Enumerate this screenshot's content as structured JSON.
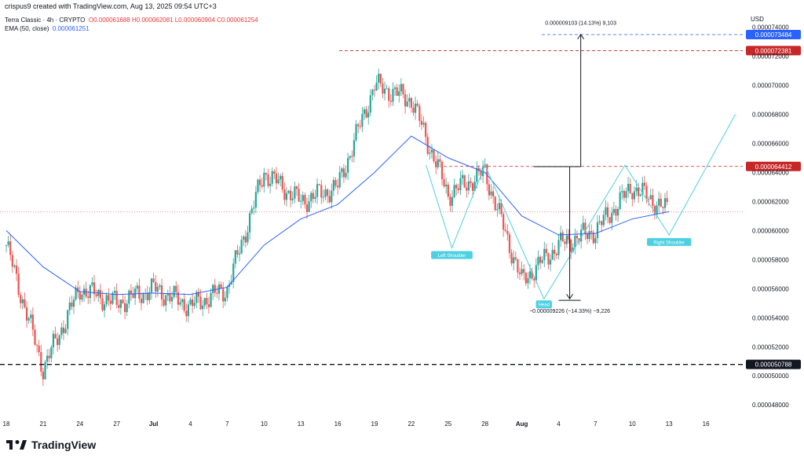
{
  "header": {
    "credit": "crispus9 created with TradingView.com, Aug 13, 2025 09:54 UTC+3",
    "symbol": "Terra Classic · 4h · CRYPTO",
    "ohlc": "O0.000061688 H0.000062081 L0.000060904 C0.000061254",
    "ema_label": "EMA (50, close)",
    "ema_value": "0.000061251",
    "currency": "USD"
  },
  "footer": {
    "brand": "TradingView"
  },
  "colors": {
    "up": "#26a69a",
    "down": "#ef5350",
    "ema": "#2962ff",
    "pattern": "#4dd0e1",
    "red_level": "#c62828",
    "blue_level": "#2962ff"
  },
  "chart_data": {
    "type": "candlestick",
    "timeframe": "4h",
    "ylim": [
      4.72e-05,
      7.5e-05
    ],
    "y_ticks": [
      "0.000048000",
      "0.000050000",
      "0.000052000",
      "0.000054000",
      "0.000056000",
      "0.000058000",
      "0.000060000",
      "0.000062000",
      "0.000064000",
      "0.000066000",
      "0.000068000",
      "0.000070000",
      "0.000072000",
      "0.000074000"
    ],
    "x_ticks": [
      "18",
      "21",
      "24",
      "27",
      "Jul",
      "4",
      "7",
      "10",
      "13",
      "16",
      "19",
      "22",
      "25",
      "28",
      "Aug",
      "4",
      "7",
      "10",
      "13",
      "16"
    ],
    "price_series_approx": {
      "x": [
        "18",
        "21",
        "24",
        "27",
        "Jul",
        "4",
        "7",
        "10",
        "13",
        "16",
        "19",
        "22",
        "25",
        "28",
        "Aug",
        "4",
        "7",
        "10",
        "13"
      ],
      "close": [
        5.9e-05,
        5.05e-05,
        5.6e-05,
        5.5e-05,
        5.6e-05,
        5.48e-05,
        5.6e-05,
        6.4e-05,
        6.2e-05,
        6.3e-05,
        7e-05,
        6.9e-05,
        6.25e-05,
        6.4e-05,
        5.65e-05,
        5.9e-05,
        6e-05,
        6.3e-05,
        6.13e-05
      ]
    },
    "ema_series_approx": {
      "x": [
        "18",
        "21",
        "24",
        "27",
        "Jul",
        "4",
        "7",
        "10",
        "13",
        "16",
        "19",
        "22",
        "25",
        "28",
        "Aug",
        "4",
        "7",
        "10",
        "13"
      ],
      "values": [
        6e-05,
        5.75e-05,
        5.58e-05,
        5.56e-05,
        5.57e-05,
        5.56e-05,
        5.61e-05,
        5.9e-05,
        6.08e-05,
        6.18e-05,
        6.4e-05,
        6.65e-05,
        6.5e-05,
        6.4e-05,
        6.1e-05,
        5.97e-05,
        5.98e-05,
        6.08e-05,
        6.13e-05
      ]
    },
    "levels": [
      {
        "price": "0.000073484",
        "color": "#2962ff",
        "style": "dashed"
      },
      {
        "price": "0.000072381",
        "color": "#c62828",
        "style": "dashed"
      },
      {
        "price": "0.000064412",
        "color": "#c62828",
        "style": "dashed"
      },
      {
        "price": "0.000050788",
        "color": "#131722",
        "style": "dashed-thick"
      }
    ],
    "current_price_line": 6.13e-05,
    "pattern_labels": [
      "Left Shoulder",
      "Head",
      "Right Shoulder"
    ],
    "measure_up": "0.000009103 (14.13%) 9,103",
    "measure_down": "−0.000009226 (−14.33%) −9,226"
  }
}
